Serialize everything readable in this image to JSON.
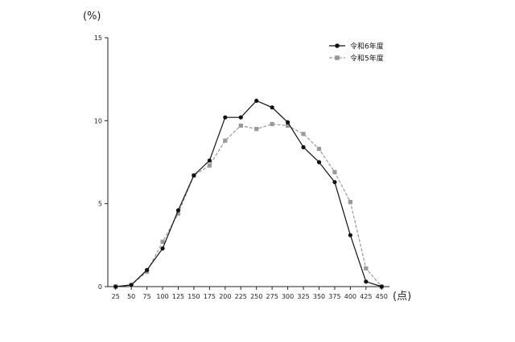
{
  "chart_data": {
    "type": "line",
    "y_unit_label": "(%)",
    "x_unit_label": "(点)",
    "x": [
      25,
      50,
      75,
      100,
      125,
      150,
      175,
      200,
      225,
      250,
      275,
      300,
      325,
      350,
      375,
      400,
      425,
      450
    ],
    "x_tick_labels": [
      "25",
      "50",
      "75",
      "100",
      "125",
      "150",
      "175",
      "200",
      "225",
      "250",
      "275",
      "300",
      "325",
      "350",
      "375",
      "400",
      "425",
      "450"
    ],
    "y_tick_labels": [
      "0",
      "5",
      "10",
      "15"
    ],
    "y_ticks": [
      0,
      5,
      10,
      15
    ],
    "ylim": [
      0,
      15
    ],
    "xlim": [
      12.5,
      462.5
    ],
    "grid": false,
    "legend_position": "top-right",
    "series": [
      {
        "name": "令和6年度",
        "color": "#111111",
        "marker": "circle",
        "line_style": "solid",
        "values": [
          0,
          0.1,
          1.0,
          2.3,
          4.6,
          6.7,
          7.6,
          10.2,
          10.2,
          11.2,
          10.8,
          9.9,
          8.4,
          7.5,
          6.3,
          3.1,
          0.3,
          0
        ]
      },
      {
        "name": "令和5年度",
        "color": "#999999",
        "marker": "square",
        "line_style": "dashed",
        "values": [
          0,
          0.1,
          0.9,
          2.7,
          4.4,
          6.7,
          7.3,
          8.8,
          9.7,
          9.5,
          9.8,
          9.7,
          9.2,
          8.3,
          6.9,
          5.1,
          1.1,
          0
        ]
      }
    ]
  }
}
